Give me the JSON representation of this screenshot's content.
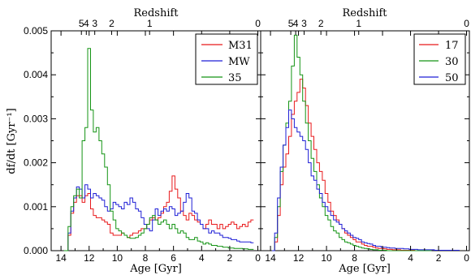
{
  "chart_data": [
    {
      "type": "line",
      "panel": "left",
      "xlabel": "Age [Gyr]",
      "ylabel": "df/dt [Gyr⁻¹]",
      "top_xlabel": "Redshift",
      "xlim": [
        14.7,
        -0.2
      ],
      "ylim": [
        0,
        0.005
      ],
      "xticks": [
        "14",
        "12",
        "10",
        "8",
        "6",
        "4",
        "2",
        "0"
      ],
      "yticks": [
        "0.000",
        "0.001",
        "0.002",
        "0.003",
        "0.004",
        "0.005"
      ],
      "top_ticks": [
        {
          "label": "5",
          "age": 12.55
        },
        {
          "label": "4",
          "age": 12.2
        },
        {
          "label": "3",
          "age": 11.6
        },
        {
          "label": "2",
          "age": 10.4
        },
        {
          "label": "1",
          "age": 7.7
        },
        {
          "label": "0",
          "age": 0.0
        }
      ],
      "legend_position": "top-right",
      "series": [
        {
          "name": "M31",
          "color": "#e8191b",
          "x": [
            13.8,
            13.5,
            13.3,
            13.1,
            12.9,
            12.7,
            12.5,
            12.3,
            12.1,
            11.9,
            11.7,
            11.5,
            11.3,
            11.1,
            10.9,
            10.7,
            10.5,
            10.3,
            10.1,
            9.9,
            9.7,
            9.5,
            9.3,
            9.1,
            8.9,
            8.7,
            8.5,
            8.3,
            8.1,
            7.9,
            7.7,
            7.5,
            7.3,
            7.1,
            6.9,
            6.7,
            6.5,
            6.3,
            6.1,
            5.9,
            5.7,
            5.5,
            5.3,
            5.1,
            4.9,
            4.7,
            4.5,
            4.3,
            4.1,
            3.9,
            3.7,
            3.5,
            3.3,
            3.1,
            2.9,
            2.7,
            2.5,
            2.3,
            2.1,
            1.9,
            1.7,
            1.5,
            1.3,
            1.1,
            0.9,
            0.7,
            0.5
          ],
          "y": [
            0.0,
            0.00035,
            0.00085,
            0.0011,
            0.00125,
            0.00125,
            0.0011,
            0.00125,
            0.0013,
            0.00095,
            0.0008,
            0.00075,
            0.00075,
            0.0007,
            0.00065,
            0.0006,
            0.0004,
            0.00035,
            0.00035,
            0.00035,
            0.0004,
            0.00035,
            0.0003,
            0.00035,
            0.0004,
            0.0004,
            0.00045,
            0.0005,
            0.0005,
            0.0006,
            0.0007,
            0.00075,
            0.0007,
            0.00075,
            0.00085,
            0.001,
            0.0011,
            0.00135,
            0.0017,
            0.0014,
            0.0012,
            0.0009,
            0.0008,
            0.0007,
            0.00085,
            0.0008,
            0.0007,
            0.00065,
            0.0006,
            0.0005,
            0.0006,
            0.0007,
            0.0006,
            0.0006,
            0.0005,
            0.0006,
            0.0005,
            0.00055,
            0.0006,
            0.00065,
            0.0006,
            0.0005,
            0.00055,
            0.0006,
            0.00055,
            0.00065,
            0.0007
          ]
        },
        {
          "name": "MW",
          "color": "#1f1fd6",
          "x": [
            13.8,
            13.5,
            13.3,
            13.1,
            12.9,
            12.7,
            12.5,
            12.3,
            12.1,
            11.9,
            11.7,
            11.5,
            11.3,
            11.1,
            10.9,
            10.7,
            10.5,
            10.3,
            10.1,
            9.9,
            9.7,
            9.5,
            9.3,
            9.1,
            8.9,
            8.7,
            8.5,
            8.3,
            8.1,
            7.9,
            7.7,
            7.5,
            7.3,
            7.1,
            6.9,
            6.7,
            6.5,
            6.3,
            6.1,
            5.9,
            5.7,
            5.5,
            5.3,
            5.1,
            4.9,
            4.7,
            4.5,
            4.3,
            4.1,
            3.9,
            3.7,
            3.5,
            3.3,
            3.1,
            2.9,
            2.7,
            2.5,
            2.3,
            2.1,
            1.9,
            1.7,
            1.5,
            1.3,
            1.1,
            0.9,
            0.7,
            0.5
          ],
          "y": [
            0.0,
            0.0004,
            0.0009,
            0.0012,
            0.00145,
            0.0014,
            0.0012,
            0.0015,
            0.0014,
            0.0012,
            0.0013,
            0.00125,
            0.0012,
            0.00115,
            0.001,
            0.0009,
            0.00095,
            0.0011,
            0.00105,
            0.001,
            0.00095,
            0.0011,
            0.00105,
            0.0012,
            0.0011,
            0.00095,
            0.0009,
            0.00075,
            0.0006,
            0.0005,
            0.00045,
            0.0007,
            0.00095,
            0.0008,
            0.0009,
            0.00095,
            0.0009,
            0.001,
            0.00095,
            0.0008,
            0.00085,
            0.0009,
            0.0011,
            0.0013,
            0.0012,
            0.0009,
            0.00085,
            0.0007,
            0.0006,
            0.0005,
            0.0005,
            0.0004,
            0.00045,
            0.0004,
            0.0004,
            0.00035,
            0.0003,
            0.0003,
            0.00028,
            0.00025,
            0.00025,
            0.00022,
            0.0002,
            0.0002,
            0.0002,
            0.0002,
            0.00018
          ]
        },
        {
          "name": "35",
          "color": "#149414",
          "x": [
            13.8,
            13.5,
            13.3,
            13.1,
            12.9,
            12.7,
            12.5,
            12.3,
            12.1,
            11.9,
            11.7,
            11.5,
            11.3,
            11.1,
            10.9,
            10.7,
            10.5,
            10.3,
            10.1,
            9.9,
            9.7,
            9.5,
            9.3,
            9.1,
            8.9,
            8.7,
            8.5,
            8.3,
            8.1,
            7.9,
            7.7,
            7.5,
            7.3,
            7.1,
            6.9,
            6.7,
            6.5,
            6.3,
            6.1,
            5.9,
            5.7,
            5.5,
            5.3,
            5.1,
            4.9,
            4.7,
            4.5,
            4.3,
            4.1,
            3.9,
            3.7,
            3.5,
            3.3,
            3.1,
            2.9,
            2.7,
            2.5,
            2.3,
            2.1,
            1.9,
            1.7,
            1.5,
            1.3,
            1.1,
            0.9,
            0.7,
            0.5
          ],
          "y": [
            0.0,
            0.00055,
            0.001,
            0.00125,
            0.0014,
            0.0012,
            0.0025,
            0.0028,
            0.0046,
            0.0032,
            0.0027,
            0.0028,
            0.0025,
            0.0022,
            0.0019,
            0.0015,
            0.0009,
            0.0007,
            0.0005,
            0.00045,
            0.0004,
            0.00035,
            0.0003,
            0.00028,
            0.00028,
            0.0003,
            0.00035,
            0.0004,
            0.0005,
            0.0006,
            0.00075,
            0.0008,
            0.0007,
            0.0006,
            0.00065,
            0.0007,
            0.0006,
            0.0005,
            0.0006,
            0.0005,
            0.0004,
            0.00045,
            0.0004,
            0.0003,
            0.00025,
            0.00025,
            0.0003,
            0.00022,
            0.0002,
            0.00015,
            0.00018,
            0.00015,
            0.00012,
            0.00012,
            0.0001,
            0.0001,
            8e-05,
            8e-05,
            6e-05,
            6e-05,
            5e-05,
            5e-05,
            5e-05,
            4e-05,
            4e-05,
            3e-05,
            3e-05
          ]
        }
      ]
    },
    {
      "type": "line",
      "panel": "right",
      "xlabel": "Age [Gyr]",
      "top_xlabel": "Redshift",
      "xlim": [
        14.7,
        -0.2
      ],
      "ylim": [
        0,
        0.005
      ],
      "xticks": [
        "14",
        "12",
        "10",
        "8",
        "6",
        "4",
        "2",
        "0"
      ],
      "top_ticks": [
        {
          "label": "5",
          "age": 12.55
        },
        {
          "label": "4",
          "age": 12.2
        },
        {
          "label": "3",
          "age": 11.6
        },
        {
          "label": "2",
          "age": 10.4
        },
        {
          "label": "1",
          "age": 7.7
        },
        {
          "label": "0",
          "age": 0.0
        }
      ],
      "legend_position": "top-right",
      "series": [
        {
          "name": "17",
          "color": "#e8191b",
          "x": [
            13.9,
            13.7,
            13.5,
            13.3,
            13.1,
            12.9,
            12.7,
            12.5,
            12.3,
            12.1,
            11.9,
            11.7,
            11.5,
            11.3,
            11.1,
            10.9,
            10.7,
            10.5,
            10.3,
            10.1,
            9.9,
            9.7,
            9.5,
            9.3,
            9.1,
            8.9,
            8.7,
            8.5,
            8.3,
            8.1,
            7.9,
            7.7,
            7.5,
            7.3,
            7.1,
            6.9,
            6.7,
            6.5,
            6.3,
            6.1,
            5.9,
            5.7,
            5.5,
            5.3,
            5.1,
            4.9,
            4.7,
            4.5,
            4.3,
            4.1,
            3.9,
            3.7,
            3.5,
            3.3,
            3.1,
            2.9,
            2.7
          ],
          "y": [
            0.0,
            0.0002,
            0.0008,
            0.0015,
            0.0019,
            0.0022,
            0.0026,
            0.0031,
            0.0034,
            0.0036,
            0.0039,
            0.0037,
            0.0033,
            0.0029,
            0.0026,
            0.0023,
            0.002,
            0.0018,
            0.0016,
            0.0013,
            0.0011,
            0.0009,
            0.0008,
            0.0007,
            0.0006,
            0.0005,
            0.0004,
            0.00035,
            0.0003,
            0.00025,
            0.0002,
            0.0002,
            0.00015,
            0.00012,
            0.0001,
            0.0001,
            8e-05,
            6e-05,
            5e-05,
            5e-05,
            4e-05,
            3e-05,
            3e-05,
            2e-05,
            2e-05,
            2e-05,
            1e-05,
            1e-05,
            1e-05,
            1e-05,
            1e-05,
            0.0,
            0.0,
            0.0,
            0.0,
            0.0,
            0.0
          ]
        },
        {
          "name": "30",
          "color": "#149414",
          "x": [
            13.9,
            13.7,
            13.5,
            13.3,
            13.1,
            12.9,
            12.7,
            12.5,
            12.3,
            12.1,
            11.9,
            11.7,
            11.5,
            11.3,
            11.1,
            10.9,
            10.7,
            10.5,
            10.3,
            10.1,
            9.9,
            9.7,
            9.5,
            9.3,
            9.1,
            8.9,
            8.7,
            8.5,
            8.3,
            8.1,
            7.9,
            7.7,
            7.5,
            7.3,
            7.1,
            6.9,
            6.7,
            6.5,
            6.3,
            6.1,
            5.9,
            5.7,
            5.5,
            5.3,
            5.1,
            4.9,
            4.7,
            4.5,
            4.3,
            4.1,
            3.9,
            3.7,
            3.5,
            3.3,
            3.1,
            2.9,
            2.7
          ],
          "y": [
            0.0,
            0.0003,
            0.001,
            0.0018,
            0.0024,
            0.0029,
            0.0034,
            0.0042,
            0.0049,
            0.0044,
            0.004,
            0.0034,
            0.0029,
            0.0025,
            0.0021,
            0.0018,
            0.0015,
            0.0012,
            0.001,
            0.0008,
            0.0007,
            0.00055,
            0.00045,
            0.0004,
            0.0003,
            0.00025,
            0.0002,
            0.00018,
            0.00015,
            0.00012,
            0.0001,
            8e-05,
            6e-05,
            5e-05,
            4e-05,
            3e-05,
            2e-05,
            2e-05,
            1e-05,
            1e-05,
            1e-05,
            0.0,
            0.0,
            0.0,
            0.0,
            0.0,
            0.0,
            0.0,
            0.0,
            0.0,
            0.0,
            0.0,
            0.0,
            0.0,
            0.0,
            0.0,
            0.0
          ]
        },
        {
          "name": "50",
          "color": "#1f1fd6",
          "x": [
            13.9,
            13.7,
            13.5,
            13.3,
            13.1,
            12.9,
            12.7,
            12.5,
            12.3,
            12.1,
            11.9,
            11.7,
            11.5,
            11.3,
            11.1,
            10.9,
            10.7,
            10.5,
            10.3,
            10.1,
            9.9,
            9.7,
            9.5,
            9.3,
            9.1,
            8.9,
            8.7,
            8.5,
            8.3,
            8.1,
            7.9,
            7.7,
            7.5,
            7.3,
            7.1,
            6.9,
            6.7,
            6.5,
            6.3,
            6.1,
            5.9,
            5.7,
            5.5,
            5.3,
            5.1,
            4.9,
            4.7,
            4.5,
            4.3,
            4.1,
            3.9,
            3.7,
            3.5,
            3.3,
            3.1,
            2.9,
            2.7,
            2.5,
            2.3,
            2.1,
            1.9,
            1.7,
            1.5,
            1.3,
            1.1,
            0.9,
            0.7
          ],
          "y": [
            0.0,
            0.0004,
            0.0012,
            0.0019,
            0.0024,
            0.0028,
            0.0032,
            0.003,
            0.0028,
            0.0027,
            0.0026,
            0.0025,
            0.0023,
            0.002,
            0.0017,
            0.0016,
            0.0014,
            0.0013,
            0.0011,
            0.001,
            0.0009,
            0.0008,
            0.0007,
            0.00065,
            0.0006,
            0.0005,
            0.00045,
            0.0004,
            0.00035,
            0.0003,
            0.00028,
            0.00025,
            0.0002,
            0.00018,
            0.00016,
            0.00015,
            0.00012,
            0.0001,
            0.0001,
            8e-05,
            8e-05,
            7e-05,
            6e-05,
            6e-05,
            5e-05,
            5e-05,
            5e-05,
            4e-05,
            4e-05,
            3e-05,
            3e-05,
            3e-05,
            2e-05,
            2e-05,
            2e-05,
            2e-05,
            2e-05,
            2e-05,
            1e-05,
            1e-05,
            1e-05,
            1e-05,
            1e-05,
            1e-05,
            1e-05,
            1e-05,
            1e-05
          ]
        }
      ]
    }
  ]
}
